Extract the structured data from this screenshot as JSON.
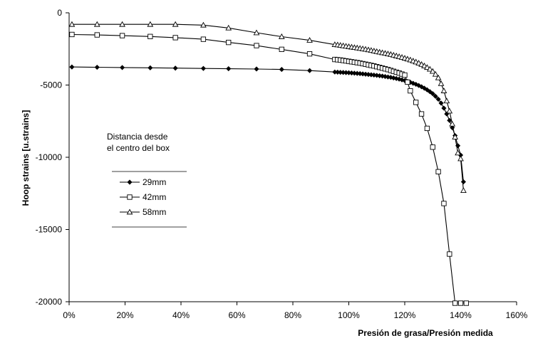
{
  "chart_data": {
    "type": "line",
    "xlabel": "Presión de grasa/Presión medida",
    "ylabel": "Hoop strains [u.strains]",
    "xlim": [
      0,
      160
    ],
    "ylim": [
      -20000,
      0
    ],
    "x_ticks": [
      0,
      20,
      40,
      60,
      80,
      100,
      120,
      140,
      160
    ],
    "x_tick_labels": [
      "0%",
      "20%",
      "40%",
      "60%",
      "80%",
      "100%",
      "120%",
      "140%",
      "160%"
    ],
    "y_ticks": [
      0,
      -5000,
      -10000,
      -15000,
      -20000
    ],
    "y_tick_labels": [
      "0",
      "-5000",
      "-10000",
      "-15000",
      "-20000"
    ],
    "grid": false,
    "legend": {
      "title_lines": [
        "Distancia desde",
        "el centro del box"
      ],
      "placement": "left-middle"
    },
    "series": [
      {
        "name": "29mm",
        "marker": "diamond",
        "x": [
          1,
          10,
          19,
          29,
          38,
          48,
          57,
          67,
          76,
          86,
          95,
          96,
          97,
          98,
          99,
          100,
          101,
          102,
          103,
          104,
          105,
          106,
          107,
          108,
          109,
          110,
          111,
          112,
          113,
          114,
          115,
          116,
          117,
          118,
          119,
          120,
          121,
          122,
          123,
          124,
          125,
          126,
          127,
          128,
          129,
          130,
          131,
          132,
          133,
          134,
          135,
          136,
          137,
          138,
          139,
          140,
          141
        ],
        "y": [
          -3750,
          -3770,
          -3790,
          -3810,
          -3830,
          -3850,
          -3870,
          -3890,
          -3920,
          -4000,
          -4100,
          -4110,
          -4120,
          -4130,
          -4140,
          -4150,
          -4165,
          -4180,
          -4195,
          -4210,
          -4230,
          -4250,
          -4270,
          -4290,
          -4310,
          -4330,
          -4355,
          -4380,
          -4410,
          -4440,
          -4470,
          -4510,
          -4550,
          -4590,
          -4640,
          -4690,
          -4750,
          -4810,
          -4880,
          -4950,
          -5030,
          -5120,
          -5220,
          -5330,
          -5460,
          -5600,
          -5780,
          -5980,
          -6250,
          -6600,
          -7000,
          -7450,
          -7950,
          -8500,
          -9200,
          -9850,
          -11700
        ]
      },
      {
        "name": "42mm",
        "marker": "square",
        "x": [
          1,
          10,
          19,
          29,
          38,
          48,
          57,
          67,
          76,
          86,
          95,
          96,
          97,
          98,
          99,
          100,
          101,
          102,
          103,
          104,
          105,
          106,
          107,
          108,
          109,
          110,
          111,
          112,
          113,
          114,
          115,
          116,
          117,
          118,
          119,
          120,
          121,
          122,
          124,
          126,
          128,
          130,
          132,
          134,
          136,
          138,
          140,
          142
        ],
        "y": [
          -1500,
          -1530,
          -1580,
          -1640,
          -1720,
          -1830,
          -2050,
          -2270,
          -2530,
          -2840,
          -3230,
          -3250,
          -3270,
          -3300,
          -3330,
          -3360,
          -3390,
          -3420,
          -3450,
          -3480,
          -3520,
          -3560,
          -3600,
          -3640,
          -3680,
          -3730,
          -3780,
          -3830,
          -3880,
          -3930,
          -3990,
          -4050,
          -4110,
          -4170,
          -4240,
          -4310,
          -4800,
          -5400,
          -6200,
          -7000,
          -8000,
          -9300,
          -11000,
          -13200,
          -16700,
          -20100,
          -20100,
          -20100
        ]
      },
      {
        "name": "58mm",
        "marker": "triangle",
        "x": [
          1,
          10,
          19,
          29,
          38,
          48,
          57,
          67,
          76,
          86,
          95,
          96,
          97,
          98,
          99,
          100,
          101,
          102,
          103,
          104,
          105,
          106,
          107,
          108,
          109,
          110,
          111,
          112,
          113,
          114,
          115,
          116,
          117,
          118,
          119,
          120,
          121,
          122,
          123,
          124,
          125,
          126,
          127,
          128,
          129,
          130,
          131,
          132,
          133,
          134,
          135,
          136,
          137,
          138,
          139,
          140,
          141
        ],
        "y": [
          -800,
          -800,
          -800,
          -800,
          -800,
          -850,
          -1050,
          -1380,
          -1650,
          -1900,
          -2200,
          -2220,
          -2250,
          -2280,
          -2310,
          -2340,
          -2370,
          -2400,
          -2430,
          -2460,
          -2490,
          -2520,
          -2560,
          -2600,
          -2640,
          -2680,
          -2720,
          -2760,
          -2800,
          -2840,
          -2880,
          -2930,
          -2980,
          -3030,
          -3080,
          -3140,
          -3200,
          -3260,
          -3330,
          -3400,
          -3480,
          -3570,
          -3670,
          -3780,
          -3900,
          -4050,
          -4250,
          -4500,
          -4900,
          -5400,
          -6100,
          -6800,
          -7700,
          -8600,
          -9700,
          -10100,
          -12300
        ]
      }
    ]
  }
}
